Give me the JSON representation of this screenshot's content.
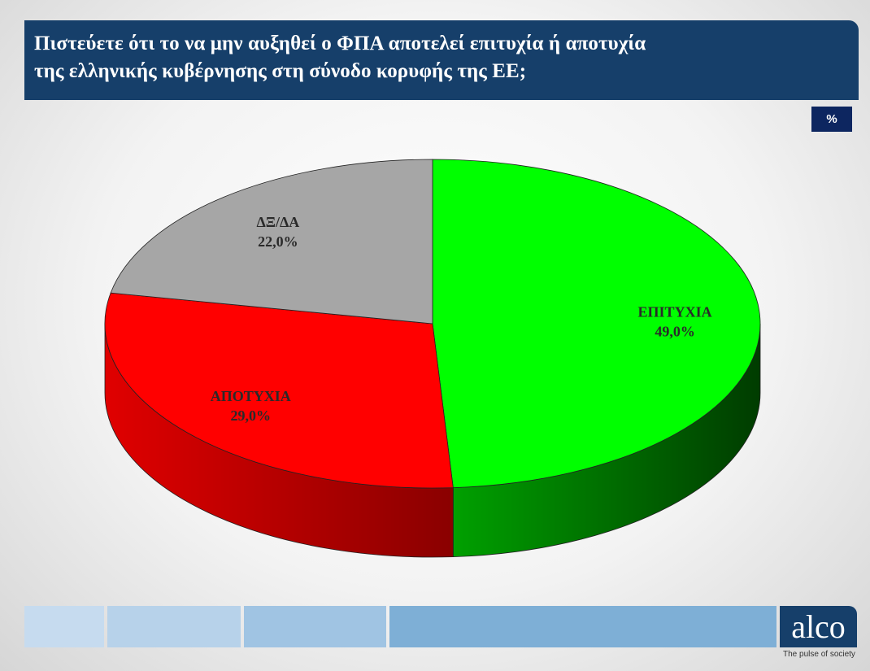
{
  "header": {
    "title": "Πιστεύετε ότι το να μην αυξηθεί ο ΦΠΑ αποτελεί επιτυχία ή αποτυχία\nτης ελληνικής κυβέρνησης στη σύνοδο κορυφής της ΕΕ;"
  },
  "unit_badge": "%",
  "chart_data": {
    "type": "pie",
    "title": "",
    "unit": "%",
    "slices": [
      {
        "label": "ΕΠΙΤΥΧΙΑ",
        "value": 49.0,
        "value_label": "49,0%",
        "color": "#00ff00",
        "side_color": "#006400"
      },
      {
        "label": "ΑΠΟΤΥΧΙΑ",
        "value": 29.0,
        "value_label": "29,0%",
        "color": "#ff0000",
        "side_color": "#a00000"
      },
      {
        "label": "ΔΞ/ΔΑ",
        "value": 22.0,
        "value_label": "22,0%",
        "color": "#a6a6a6",
        "side_color": "#6e6e6e"
      }
    ]
  },
  "footer": {
    "logo_text": "alco",
    "tagline": "The pulse of society",
    "block_colors": [
      "#c6dbef",
      "#b7d2ea",
      "#a0c4e3",
      "#7eafd6"
    ]
  }
}
